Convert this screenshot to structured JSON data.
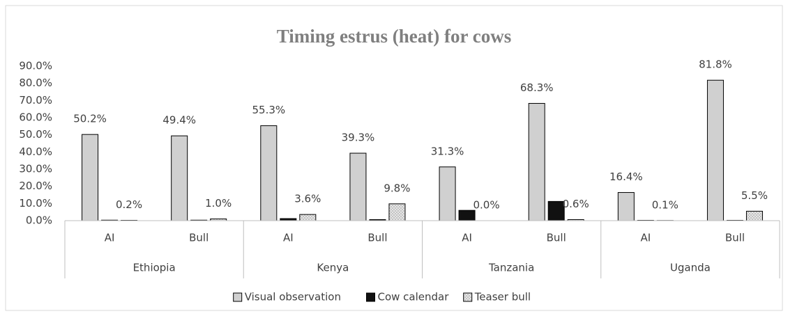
{
  "chart_data": {
    "type": "bar",
    "title": "Timing estrus (heat) for cows",
    "categories": [
      "AI",
      "Bull",
      "AI",
      "Bull",
      "AI",
      "Bull",
      "AI",
      "Bull"
    ],
    "category_groups": [
      "Ethiopia",
      "Kenya",
      "Tanzania",
      "Uganda"
    ],
    "series": [
      {
        "name": "Visual observation",
        "color": "#d0d0d0",
        "values": [
          50.2,
          49.4,
          55.3,
          39.3,
          31.3,
          68.3,
          16.4,
          81.8
        ],
        "value_labels": [
          "50.2%",
          "49.4%",
          "55.3%",
          "39.3%",
          "31.3%",
          "68.3%",
          "16.4%",
          "81.8%"
        ]
      },
      {
        "name": "Cow calendar",
        "color": "#111111",
        "values": [
          0.3,
          0.3,
          1.2,
          0.6,
          6.0,
          11.2,
          0.2,
          0.2
        ]
      },
      {
        "name": "Teaser bull",
        "color": "dotted",
        "values": [
          0.2,
          1.0,
          3.6,
          9.8,
          0.0,
          0.6,
          0.1,
          5.5
        ],
        "value_labels": [
          "0.2%",
          "1.0%",
          "3.6%",
          "9.8%",
          "0.0%",
          "0.6%",
          "0.1%",
          "5.5%"
        ]
      }
    ],
    "ylim": [
      0,
      90
    ],
    "yticks": [
      {
        "value": 0,
        "label": "0.0%"
      },
      {
        "value": 10,
        "label": "10.0%"
      },
      {
        "value": 20,
        "label": "20.0%"
      },
      {
        "value": 30,
        "label": "30.0%"
      },
      {
        "value": 40,
        "label": "40.0%"
      },
      {
        "value": 50,
        "label": "50.0%"
      },
      {
        "value": 60,
        "label": "60.0%"
      },
      {
        "value": 70,
        "label": "70.0%"
      },
      {
        "value": 80,
        "label": "80.0%"
      },
      {
        "value": 90,
        "label": "90.0%"
      }
    ],
    "grid": false,
    "legend": "bottom"
  }
}
